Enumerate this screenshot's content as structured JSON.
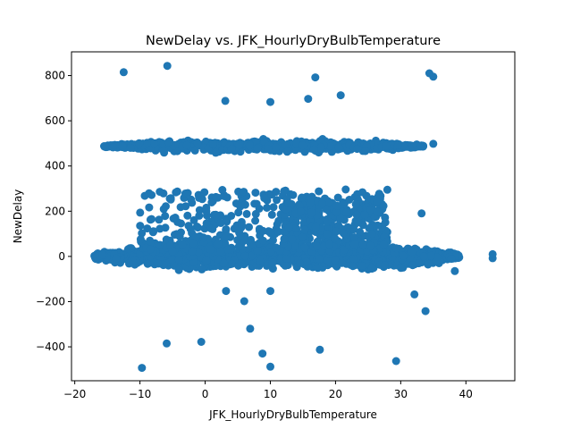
{
  "chart_data": {
    "type": "scatter",
    "title": "NewDelay vs. JFK_HourlyDryBulbTemperature",
    "xlabel": "JFK_HourlyDryBulbTemperature",
    "ylabel": "NewDelay",
    "xlim": [
      -20.5,
      47.5
    ],
    "ylim": [
      -550,
      905
    ],
    "xticks": [
      -20,
      -10,
      0,
      10,
      20,
      30,
      40
    ],
    "yticks": [
      -400,
      -200,
      0,
      200,
      400,
      600,
      800
    ],
    "xtick_labels": [
      "−20",
      "−10",
      "0",
      "10",
      "20",
      "30",
      "40"
    ],
    "ytick_labels": [
      "−400",
      "−200",
      "0",
      "200",
      "400",
      "600",
      "800"
    ],
    "grid": false,
    "color": "#1f77b4",
    "outliers": [
      {
        "x": -12.5,
        "y": 815
      },
      {
        "x": -5.8,
        "y": 843
      },
      {
        "x": 16.9,
        "y": 792
      },
      {
        "x": 34.4,
        "y": 810
      },
      {
        "x": 35.0,
        "y": 795
      },
      {
        "x": 20.8,
        "y": 713
      },
      {
        "x": 15.8,
        "y": 697
      },
      {
        "x": 10.0,
        "y": 683
      },
      {
        "x": 3.1,
        "y": 688
      },
      {
        "x": -9.7,
        "y": -493
      },
      {
        "x": -5.9,
        "y": -385
      },
      {
        "x": -0.6,
        "y": -378
      },
      {
        "x": 6.9,
        "y": -320
      },
      {
        "x": 8.8,
        "y": -430
      },
      {
        "x": 10.0,
        "y": -488
      },
      {
        "x": 17.6,
        "y": -413
      },
      {
        "x": 29.3,
        "y": -463
      },
      {
        "x": 33.8,
        "y": -242
      },
      {
        "x": 32.1,
        "y": -168
      },
      {
        "x": 6.0,
        "y": -198
      },
      {
        "x": 3.2,
        "y": -153
      },
      {
        "x": 10.0,
        "y": -153
      },
      {
        "x": 44.1,
        "y": -8
      },
      {
        "x": 44.1,
        "y": 10
      },
      {
        "x": 38.3,
        "y": -65
      },
      {
        "x": 35.0,
        "y": 498
      },
      {
        "x": 33.2,
        "y": 190
      }
    ],
    "clusters": [
      {
        "name": "main",
        "x_range": [
          -17,
          39
        ],
        "y_center": 0,
        "y_spread": 55,
        "density": "high"
      },
      {
        "name": "upper",
        "x_range": [
          -16,
          34
        ],
        "y_center": 490,
        "y_spread": 30,
        "density": "high"
      },
      {
        "name": "middle",
        "x_range": [
          -12,
          30
        ],
        "y_center": 150,
        "y_spread": 90,
        "density": "medium"
      }
    ]
  }
}
